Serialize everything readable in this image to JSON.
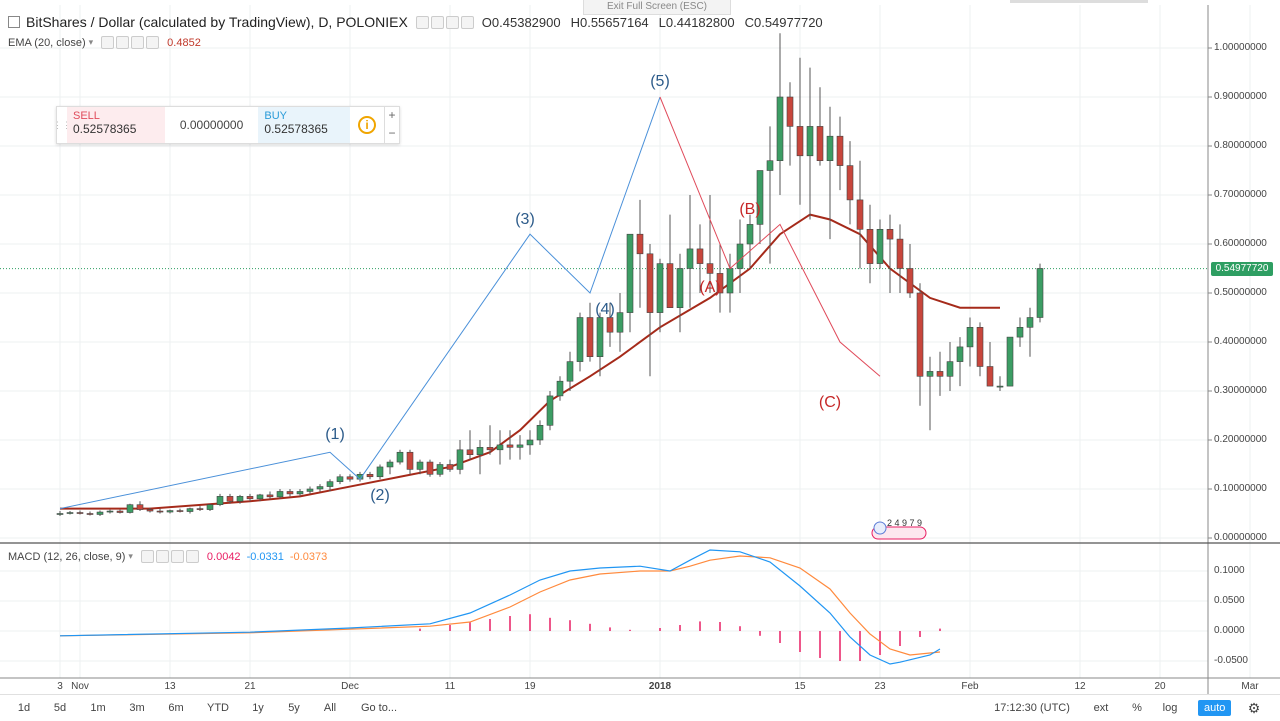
{
  "header": {
    "title": "BitShares / Dollar (calculated by TradingView), D, POLONIEX",
    "open": "O0.45382900",
    "high": "H0.55657164",
    "low": "L0.44182800",
    "close": "C0.54977720",
    "exit_fullscreen": "Exit Full Screen (ESC)"
  },
  "ema_legend": {
    "label": "EMA (20, close)",
    "value": "0.4852"
  },
  "macd_legend": {
    "label": "MACD (12, 26, close, 9)",
    "hist": "0.0042",
    "macd": "-0.0331",
    "signal": "-0.0373"
  },
  "trade_widget": {
    "sell_label": "SELL",
    "sell_value": "0.52578365",
    "spread": "0.00000000",
    "buy_label": "BUY",
    "buy_value": "0.52578365",
    "plus": "+",
    "minus": "−",
    "info": "i"
  },
  "last_price_label": "0.54977720",
  "events_label": "2 4 9 7 9",
  "wave_labels": [
    {
      "text": "(1)",
      "color": "#2c5b8a"
    },
    {
      "text": "(2)",
      "color": "#2c5b8a"
    },
    {
      "text": "(3)",
      "color": "#2c5b8a"
    },
    {
      "text": "(4)",
      "color": "#2c5b8a"
    },
    {
      "text": "(5)",
      "color": "#2c5b8a"
    },
    {
      "text": "(A)",
      "color": "#c62828"
    },
    {
      "text": "(B)",
      "color": "#c62828"
    },
    {
      "text": "(C)",
      "color": "#c62828"
    }
  ],
  "bottom_bar": {
    "timeframes": [
      "1d",
      "5d",
      "1m",
      "3m",
      "6m",
      "YTD",
      "1y",
      "5y",
      "All",
      "Go to..."
    ],
    "time": "17:12:30 (UTC)",
    "right": [
      "ext",
      "%",
      "log",
      "auto"
    ]
  },
  "colors": {
    "up": "#3c9d64",
    "down": "#c8463c",
    "ema": "#a52a1a",
    "macd": "#2196f3",
    "signal": "#ff8a3d",
    "hist": "#e91e63",
    "wave_impulse": "#4a90d9",
    "wave_correction": "#e04b5b"
  },
  "chart_data": [
    {
      "type": "candlestick",
      "title": "BitShares / Dollar (calculated by TradingView), D, POLONIEX",
      "ylim": [
        0,
        1.05
      ],
      "y_ticks": [
        "1.00000000",
        "0.90000000",
        "0.80000000",
        "0.70000000",
        "0.60000000",
        "0.50000000",
        "0.40000000",
        "0.30000000",
        "0.20000000",
        "0.10000000",
        "0.00000000"
      ],
      "x_ticks": [
        "3",
        "Nov",
        "13",
        "21",
        "Dec",
        "11",
        "19",
        "2018",
        "15",
        "23",
        "Feb",
        "12",
        "20",
        "Mar"
      ],
      "x_tick_days": [
        -29,
        -27,
        -18,
        -10,
        0,
        10,
        18,
        31,
        45,
        53,
        62,
        73,
        81,
        90
      ],
      "day0": "2017-12-01",
      "candles": [
        [
          0.05,
          0.055,
          0.045,
          0.05
        ],
        [
          0.05,
          0.055,
          0.048,
          0.052
        ],
        [
          0.052,
          0.056,
          0.048,
          0.05
        ],
        [
          0.05,
          0.054,
          0.046,
          0.048
        ],
        [
          0.048,
          0.056,
          0.045,
          0.053
        ],
        [
          0.053,
          0.058,
          0.05,
          0.055
        ],
        [
          0.055,
          0.058,
          0.05,
          0.052
        ],
        [
          0.052,
          0.07,
          0.05,
          0.068
        ],
        [
          0.068,
          0.075,
          0.055,
          0.058
        ],
        [
          0.058,
          0.062,
          0.052,
          0.055
        ],
        [
          0.055,
          0.06,
          0.05,
          0.053
        ],
        [
          0.053,
          0.058,
          0.05,
          0.056
        ],
        [
          0.056,
          0.06,
          0.052,
          0.054
        ],
        [
          0.054,
          0.062,
          0.05,
          0.06
        ],
        [
          0.06,
          0.065,
          0.055,
          0.058
        ],
        [
          0.058,
          0.07,
          0.055,
          0.068
        ],
        [
          0.068,
          0.09,
          0.065,
          0.085
        ],
        [
          0.085,
          0.09,
          0.07,
          0.075
        ],
        [
          0.075,
          0.088,
          0.07,
          0.085
        ],
        [
          0.085,
          0.09,
          0.075,
          0.08
        ],
        [
          0.08,
          0.09,
          0.075,
          0.088
        ],
        [
          0.088,
          0.095,
          0.08,
          0.084
        ],
        [
          0.084,
          0.1,
          0.08,
          0.095
        ],
        [
          0.095,
          0.1,
          0.085,
          0.09
        ],
        [
          0.09,
          0.1,
          0.085,
          0.095
        ],
        [
          0.095,
          0.105,
          0.09,
          0.1
        ],
        [
          0.1,
          0.11,
          0.095,
          0.105
        ],
        [
          0.105,
          0.12,
          0.095,
          0.115
        ],
        [
          0.115,
          0.13,
          0.11,
          0.125
        ],
        [
          0.125,
          0.13,
          0.115,
          0.12
        ],
        [
          0.12,
          0.135,
          0.115,
          0.13
        ],
        [
          0.13,
          0.135,
          0.12,
          0.125
        ],
        [
          0.125,
          0.15,
          0.12,
          0.145
        ],
        [
          0.145,
          0.16,
          0.13,
          0.155
        ],
        [
          0.155,
          0.18,
          0.15,
          0.175
        ],
        [
          0.175,
          0.18,
          0.13,
          0.14
        ],
        [
          0.14,
          0.16,
          0.13,
          0.155
        ],
        [
          0.155,
          0.16,
          0.125,
          0.13
        ],
        [
          0.13,
          0.155,
          0.125,
          0.15
        ],
        [
          0.15,
          0.16,
          0.135,
          0.14
        ],
        [
          0.14,
          0.2,
          0.13,
          0.18
        ],
        [
          0.18,
          0.22,
          0.16,
          0.17
        ],
        [
          0.17,
          0.2,
          0.13,
          0.185
        ],
        [
          0.185,
          0.23,
          0.17,
          0.18
        ],
        [
          0.18,
          0.22,
          0.15,
          0.19
        ],
        [
          0.19,
          0.22,
          0.16,
          0.185
        ],
        [
          0.185,
          0.21,
          0.16,
          0.19
        ],
        [
          0.19,
          0.22,
          0.17,
          0.2
        ],
        [
          0.2,
          0.24,
          0.19,
          0.23
        ],
        [
          0.23,
          0.3,
          0.22,
          0.29
        ],
        [
          0.29,
          0.33,
          0.28,
          0.32
        ],
        [
          0.32,
          0.38,
          0.3,
          0.36
        ],
        [
          0.36,
          0.46,
          0.34,
          0.45
        ],
        [
          0.45,
          0.48,
          0.36,
          0.37
        ],
        [
          0.37,
          0.46,
          0.33,
          0.45
        ],
        [
          0.45,
          0.48,
          0.39,
          0.42
        ],
        [
          0.42,
          0.5,
          0.38,
          0.46
        ],
        [
          0.46,
          0.62,
          0.42,
          0.62
        ],
        [
          0.62,
          0.69,
          0.47,
          0.58
        ],
        [
          0.58,
          0.6,
          0.33,
          0.46
        ],
        [
          0.46,
          0.57,
          0.42,
          0.56
        ],
        [
          0.56,
          0.66,
          0.47,
          0.47
        ],
        [
          0.47,
          0.58,
          0.42,
          0.55
        ],
        [
          0.55,
          0.7,
          0.47,
          0.59
        ],
        [
          0.59,
          0.64,
          0.5,
          0.56
        ],
        [
          0.56,
          0.7,
          0.5,
          0.54
        ],
        [
          0.54,
          0.6,
          0.46,
          0.5
        ],
        [
          0.5,
          0.58,
          0.46,
          0.55
        ],
        [
          0.55,
          0.65,
          0.5,
          0.6
        ],
        [
          0.6,
          0.66,
          0.55,
          0.64
        ],
        [
          0.64,
          0.75,
          0.6,
          0.75
        ],
        [
          0.75,
          0.84,
          0.56,
          0.77
        ],
        [
          0.77,
          1.03,
          0.7,
          0.9
        ],
        [
          0.9,
          0.93,
          0.76,
          0.84
        ],
        [
          0.84,
          0.98,
          0.68,
          0.78
        ],
        [
          0.78,
          0.96,
          0.65,
          0.84
        ],
        [
          0.84,
          0.92,
          0.76,
          0.77
        ],
        [
          0.77,
          0.88,
          0.61,
          0.82
        ],
        [
          0.82,
          0.86,
          0.71,
          0.76
        ],
        [
          0.76,
          0.81,
          0.64,
          0.69
        ],
        [
          0.69,
          0.77,
          0.55,
          0.63
        ],
        [
          0.63,
          0.68,
          0.52,
          0.56
        ],
        [
          0.56,
          0.65,
          0.55,
          0.63
        ],
        [
          0.63,
          0.66,
          0.5,
          0.61
        ],
        [
          0.61,
          0.64,
          0.5,
          0.55
        ],
        [
          0.55,
          0.6,
          0.49,
          0.5
        ],
        [
          0.5,
          0.52,
          0.27,
          0.33
        ],
        [
          0.33,
          0.37,
          0.22,
          0.34
        ],
        [
          0.34,
          0.38,
          0.29,
          0.33
        ],
        [
          0.33,
          0.4,
          0.3,
          0.36
        ],
        [
          0.36,
          0.41,
          0.31,
          0.39
        ],
        [
          0.39,
          0.45,
          0.35,
          0.43
        ],
        [
          0.43,
          0.44,
          0.33,
          0.35
        ],
        [
          0.35,
          0.4,
          0.31,
          0.31
        ],
        [
          0.31,
          0.33,
          0.3,
          0.31
        ],
        [
          0.31,
          0.41,
          0.31,
          0.41
        ],
        [
          0.41,
          0.45,
          0.39,
          0.43
        ],
        [
          0.43,
          0.47,
          0.37,
          0.45
        ],
        [
          0.45,
          0.56,
          0.44,
          0.55
        ]
      ],
      "candle_start_day": -29,
      "ema": [
        [
          -29,
          0.06
        ],
        [
          -20,
          0.06
        ],
        [
          -10,
          0.075
        ],
        [
          -5,
          0.085
        ],
        [
          0,
          0.105
        ],
        [
          5,
          0.125
        ],
        [
          10,
          0.145
        ],
        [
          14,
          0.175
        ],
        [
          17,
          0.22
        ],
        [
          20,
          0.28
        ],
        [
          24,
          0.33
        ],
        [
          27,
          0.37
        ],
        [
          31,
          0.43
        ],
        [
          36,
          0.49
        ],
        [
          40,
          0.55
        ],
        [
          43,
          0.62
        ],
        [
          46,
          0.66
        ],
        [
          48,
          0.65
        ],
        [
          51,
          0.62
        ],
        [
          54,
          0.55
        ],
        [
          58,
          0.49
        ],
        [
          61,
          0.47
        ],
        [
          65,
          0.47
        ]
      ],
      "last_price": 0.5497772
    },
    {
      "type": "line",
      "title": "MACD (12, 26, close, 9)",
      "ylim": [
        -0.065,
        0.13
      ],
      "y_ticks": [
        "0.1000",
        "0.0500",
        "0.0000",
        "-0.0500"
      ],
      "macd": [
        [
          -29,
          -0.008
        ],
        [
          -10,
          -0.002
        ],
        [
          0,
          0.005
        ],
        [
          8,
          0.012
        ],
        [
          12,
          0.03
        ],
        [
          16,
          0.06
        ],
        [
          19,
          0.085
        ],
        [
          22,
          0.1
        ],
        [
          25,
          0.105
        ],
        [
          29,
          0.108
        ],
        [
          32,
          0.1
        ],
        [
          34,
          0.118
        ],
        [
          36,
          0.135
        ],
        [
          39,
          0.132
        ],
        [
          42,
          0.115
        ],
        [
          45,
          0.075
        ],
        [
          48,
          0.03
        ],
        [
          50,
          -0.01
        ],
        [
          52,
          -0.04
        ],
        [
          54,
          -0.055
        ],
        [
          55,
          -0.052
        ],
        [
          58,
          -0.04
        ],
        [
          59,
          -0.03
        ]
      ],
      "signal": [
        [
          -29,
          -0.008
        ],
        [
          -10,
          -0.003
        ],
        [
          0,
          0.003
        ],
        [
          8,
          0.008
        ],
        [
          12,
          0.015
        ],
        [
          16,
          0.04
        ],
        [
          19,
          0.065
        ],
        [
          22,
          0.085
        ],
        [
          25,
          0.095
        ],
        [
          29,
          0.1
        ],
        [
          32,
          0.1
        ],
        [
          34,
          0.108
        ],
        [
          36,
          0.118
        ],
        [
          39,
          0.125
        ],
        [
          42,
          0.122
        ],
        [
          45,
          0.105
        ],
        [
          48,
          0.07
        ],
        [
          50,
          0.03
        ],
        [
          52,
          -0.005
        ],
        [
          54,
          -0.03
        ],
        [
          56,
          -0.04
        ],
        [
          59,
          -0.035
        ]
      ],
      "histogram": [
        [
          7,
          0.004
        ],
        [
          10,
          0.01
        ],
        [
          12,
          0.015
        ],
        [
          14,
          0.02
        ],
        [
          16,
          0.025
        ],
        [
          18,
          0.028
        ],
        [
          20,
          0.022
        ],
        [
          22,
          0.018
        ],
        [
          24,
          0.012
        ],
        [
          26,
          0.006
        ],
        [
          28,
          0.002
        ],
        [
          31,
          0.005
        ],
        [
          33,
          0.01
        ],
        [
          35,
          0.016
        ],
        [
          37,
          0.015
        ],
        [
          39,
          0.008
        ],
        [
          41,
          -0.008
        ],
        [
          43,
          -0.02
        ],
        [
          45,
          -0.035
        ],
        [
          47,
          -0.045
        ],
        [
          49,
          -0.05
        ],
        [
          51,
          -0.05
        ],
        [
          53,
          -0.04
        ],
        [
          55,
          -0.025
        ],
        [
          57,
          -0.01
        ],
        [
          59,
          0.004
        ]
      ]
    }
  ]
}
